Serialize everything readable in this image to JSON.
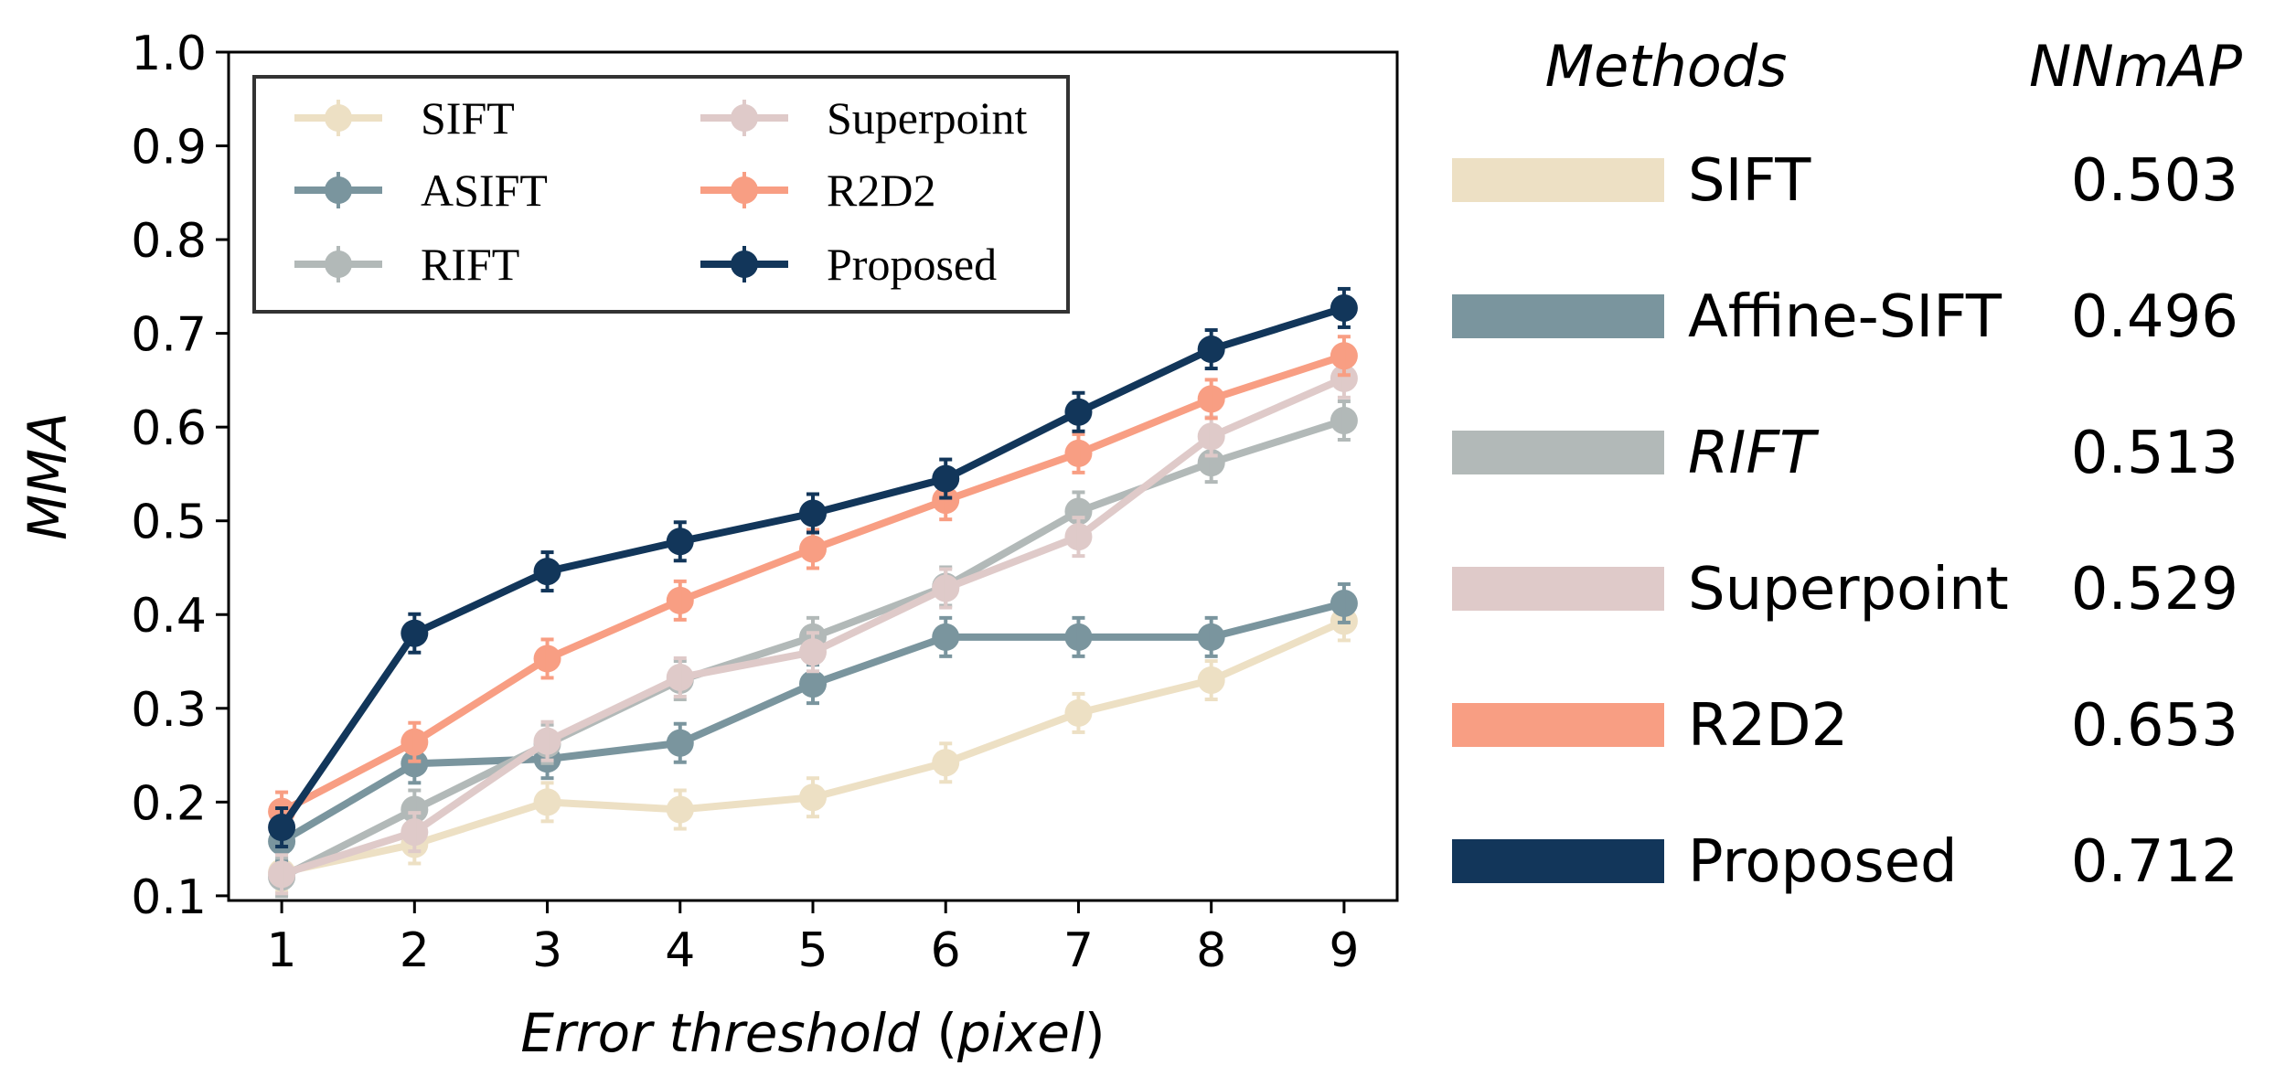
{
  "chart_data": {
    "type": "line",
    "title": "",
    "xlabel_main": "Error threshold",
    "xlabel_unit": "pixel",
    "ylabel": "MMA",
    "x": [
      1,
      2,
      3,
      4,
      5,
      6,
      7,
      8,
      9
    ],
    "xlim": [
      0.6,
      9.4
    ],
    "ylim": [
      0.095,
      1.0
    ],
    "yticks": [
      "0.1",
      "0.2",
      "0.3",
      "0.4",
      "0.5",
      "0.6",
      "0.7",
      "0.8",
      "0.9",
      "1.0"
    ],
    "xticks": [
      "1",
      "2",
      "3",
      "4",
      "5",
      "6",
      "7",
      "8",
      "9"
    ],
    "grid": false,
    "legend_position": "top-left",
    "series": [
      {
        "name": "SIFT",
        "color": "#ede0c4",
        "values": [
          0.125,
          0.155,
          0.2,
          0.192,
          0.205,
          0.242,
          0.295,
          0.33,
          0.393
        ]
      },
      {
        "name": "ASIFT",
        "color": "#7a959e",
        "values": [
          0.158,
          0.241,
          0.246,
          0.263,
          0.326,
          0.376,
          0.376,
          0.376,
          0.412
        ]
      },
      {
        "name": "RIFT",
        "color": "#b2b9b8",
        "values": [
          0.12,
          0.192,
          0.262,
          0.33,
          0.376,
          0.43,
          0.51,
          0.562,
          0.607
        ]
      },
      {
        "name": "Superpoint",
        "color": "#dfcac9",
        "values": [
          0.123,
          0.168,
          0.265,
          0.333,
          0.36,
          0.428,
          0.483,
          0.59,
          0.652
        ]
      },
      {
        "name": "R2D2",
        "color": "#f89e83",
        "values": [
          0.19,
          0.264,
          0.353,
          0.415,
          0.47,
          0.522,
          0.572,
          0.63,
          0.676
        ]
      },
      {
        "name": "Proposed",
        "color": "#12365a",
        "values": [
          0.173,
          0.38,
          0.446,
          0.478,
          0.508,
          0.545,
          0.616,
          0.683,
          0.727
        ]
      }
    ]
  },
  "summary_table": {
    "header_methods": "Methods",
    "header_score": "NNmAP",
    "rows": [
      {
        "method": "SIFT",
        "score": "0.503",
        "color": "#ede0c4",
        "italic": false
      },
      {
        "method": "Affine-SIFT",
        "score": "0.496",
        "color": "#7a959e",
        "italic": false
      },
      {
        "method": "RIFT",
        "score": "0.513",
        "color": "#b2b9b8",
        "italic": true
      },
      {
        "method": "Superpoint",
        "score": "0.529",
        "color": "#dfcac9",
        "italic": false
      },
      {
        "method": "R2D2",
        "score": "0.653",
        "color": "#f89e83",
        "italic": false
      },
      {
        "method": "Proposed",
        "score": "0.712",
        "color": "#12365a",
        "italic": false
      }
    ]
  }
}
